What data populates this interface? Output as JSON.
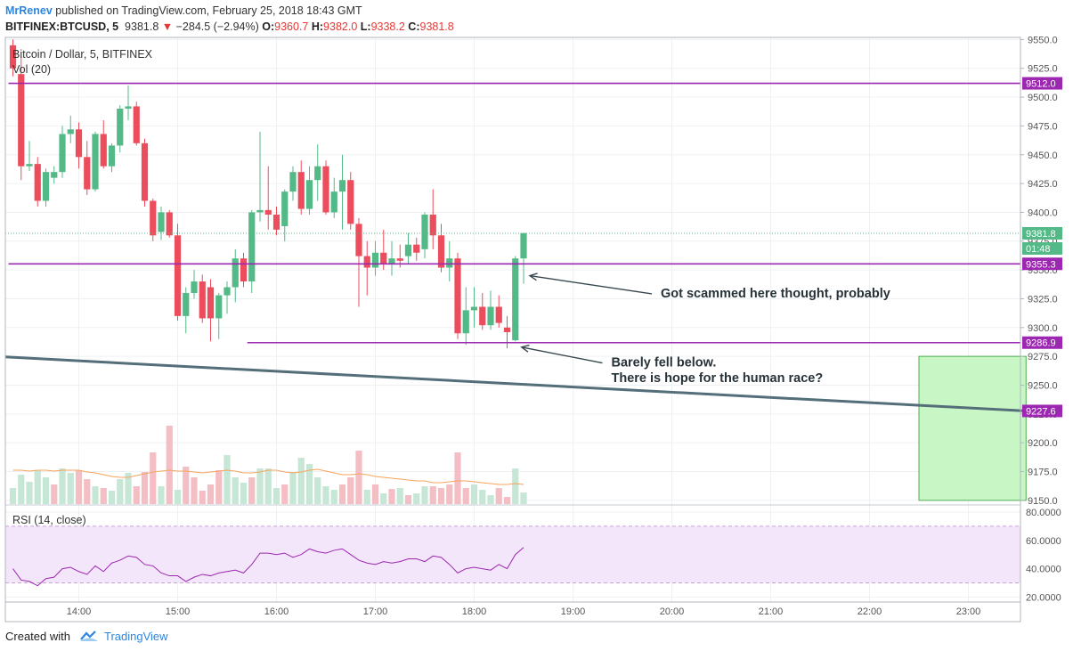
{
  "header": {
    "author": "MrRenev",
    "published_text": "published on TradingView.com, February 25, 2018 18:43 GMT",
    "symbol": "BITFINEX:BTCUSD, 5",
    "last": "9381.8",
    "change_arrow": "▼",
    "change": "−284.5 (−2.94%)",
    "open_label": "O:",
    "open": "9360.7",
    "high_label": "H:",
    "high": "9382.0",
    "low_label": "L:",
    "low": "9338.2",
    "close_label": "C:",
    "close": "9381.8"
  },
  "footer": {
    "created_with": "Created with",
    "brand": "TradingView"
  },
  "chart_data": {
    "type": "candlestick",
    "title": "Bitcoin / Dollar, 5, BITFINEX",
    "volume_label": "Vol (20)",
    "price_axis": {
      "ylim": [
        9147,
        9552
      ],
      "ticks": [
        "9550.0",
        "9525.0",
        "9500.0",
        "9475.0",
        "9450.0",
        "9425.0",
        "9400.0",
        "9375.0",
        "9350.0",
        "9325.0",
        "9300.0",
        "9275.0",
        "9250.0",
        "9225.0",
        "9200.0",
        "9175.0",
        "9150.0"
      ]
    },
    "time_axis": {
      "start_time": "13:20",
      "interval": "5",
      "ticks": [
        "14:00",
        "15:00",
        "16:00",
        "17:00",
        "18:00",
        "19:00",
        "20:00",
        "21:00",
        "22:00",
        "23:00"
      ]
    },
    "candles": [
      [
        9545,
        9550,
        9518,
        9525
      ],
      [
        9520,
        9535,
        9428,
        9440
      ],
      [
        9440,
        9462,
        9436,
        9442
      ],
      [
        9442,
        9448,
        9405,
        9410
      ],
      [
        9410,
        9438,
        9405,
        9435
      ],
      [
        9430,
        9440,
        9425,
        9435
      ],
      [
        9435,
        9475,
        9430,
        9468
      ],
      [
        9468,
        9484,
        9460,
        9472
      ],
      [
        9472,
        9478,
        9438,
        9448
      ],
      [
        9448,
        9462,
        9415,
        9420
      ],
      [
        9420,
        9470,
        9418,
        9468
      ],
      [
        9468,
        9480,
        9438,
        9440
      ],
      [
        9440,
        9460,
        9435,
        9458
      ],
      [
        9458,
        9493,
        9452,
        9490
      ],
      [
        9490,
        9510,
        9480,
        9492
      ],
      [
        9492,
        9496,
        9458,
        9460
      ],
      [
        9460,
        9464,
        9405,
        9410
      ],
      [
        9410,
        9412,
        9375,
        9380
      ],
      [
        9383,
        9405,
        9376,
        9400
      ],
      [
        9400,
        9402,
        9378,
        9380
      ],
      [
        9380,
        9390,
        9306,
        9310
      ],
      [
        9310,
        9335,
        9295,
        9330
      ],
      [
        9330,
        9350,
        9325,
        9340
      ],
      [
        9340,
        9346,
        9304,
        9308
      ],
      [
        9335,
        9342,
        9288,
        9308
      ],
      [
        9308,
        9330,
        9290,
        9328
      ],
      [
        9328,
        9340,
        9312,
        9335
      ],
      [
        9335,
        9368,
        9322,
        9360
      ],
      [
        9360,
        9365,
        9335,
        9340
      ],
      [
        9340,
        9402,
        9330,
        9400
      ],
      [
        9400,
        9470,
        9392,
        9402
      ],
      [
        9402,
        9440,
        9385,
        9398
      ],
      [
        9398,
        9405,
        9380,
        9385
      ],
      [
        9388,
        9420,
        9375,
        9418
      ],
      [
        9418,
        9440,
        9410,
        9435
      ],
      [
        9435,
        9445,
        9398,
        9403
      ],
      [
        9403,
        9440,
        9398,
        9428
      ],
      [
        9428,
        9459,
        9410,
        9440
      ],
      [
        9440,
        9445,
        9398,
        9400
      ],
      [
        9400,
        9430,
        9395,
        9418
      ],
      [
        9418,
        9450,
        9385,
        9428
      ],
      [
        9428,
        9435,
        9385,
        9390
      ],
      [
        9390,
        9395,
        9318,
        9362
      ],
      [
        9362,
        9375,
        9328,
        9352
      ],
      [
        9352,
        9375,
        9345,
        9365
      ],
      [
        9365,
        9385,
        9350,
        9355
      ],
      [
        9355,
        9375,
        9345,
        9360
      ],
      [
        9360,
        9372,
        9352,
        9358
      ],
      [
        9362,
        9382,
        9355,
        9372
      ],
      [
        9372,
        9378,
        9358,
        9365
      ],
      [
        9368,
        9400,
        9360,
        9398
      ],
      [
        9398,
        9420,
        9368,
        9380
      ],
      [
        9380,
        9390,
        9348,
        9352
      ],
      [
        9352,
        9375,
        9340,
        9360
      ],
      [
        9360,
        9365,
        9290,
        9295
      ],
      [
        9295,
        9335,
        9285,
        9315
      ],
      [
        9315,
        9335,
        9300,
        9318
      ],
      [
        9318,
        9330,
        9298,
        9302
      ],
      [
        9302,
        9332,
        9298,
        9318
      ],
      [
        9318,
        9328,
        9300,
        9304
      ],
      [
        9300,
        9310,
        9282,
        9296
      ],
      [
        9289,
        9362,
        9288,
        9360
      ],
      [
        9360,
        9382,
        9338,
        9382
      ]
    ],
    "volumes": [
      [
        18,
        "up"
      ],
      [
        33,
        "up"
      ],
      [
        25,
        "up"
      ],
      [
        38,
        "up"
      ],
      [
        30,
        "up"
      ],
      [
        22,
        "dn"
      ],
      [
        40,
        "up"
      ],
      [
        35,
        "up"
      ],
      [
        38,
        "dn"
      ],
      [
        28,
        "dn"
      ],
      [
        20,
        "up"
      ],
      [
        18,
        "dn"
      ],
      [
        15,
        "up"
      ],
      [
        28,
        "up"
      ],
      [
        35,
        "up"
      ],
      [
        20,
        "dn"
      ],
      [
        36,
        "dn"
      ],
      [
        58,
        "dn"
      ],
      [
        20,
        "up"
      ],
      [
        88,
        "dn"
      ],
      [
        16,
        "up"
      ],
      [
        42,
        "dn"
      ],
      [
        30,
        "dn"
      ],
      [
        15,
        "dn"
      ],
      [
        22,
        "dn"
      ],
      [
        38,
        "dn"
      ],
      [
        55,
        "up"
      ],
      [
        30,
        "up"
      ],
      [
        24,
        "up"
      ],
      [
        30,
        "dn"
      ],
      [
        40,
        "up"
      ],
      [
        40,
        "up"
      ],
      [
        18,
        "up"
      ],
      [
        22,
        "dn"
      ],
      [
        36,
        "up"
      ],
      [
        52,
        "up"
      ],
      [
        45,
        "up"
      ],
      [
        30,
        "up"
      ],
      [
        20,
        "up"
      ],
      [
        16,
        "up"
      ],
      [
        22,
        "dn"
      ],
      [
        30,
        "dn"
      ],
      [
        60,
        "dn"
      ],
      [
        16,
        "up"
      ],
      [
        22,
        "dn"
      ],
      [
        12,
        "up"
      ],
      [
        17,
        "dn"
      ],
      [
        18,
        "up"
      ],
      [
        10,
        "dn"
      ],
      [
        12,
        "up"
      ],
      [
        20,
        "up"
      ],
      [
        20,
        "dn"
      ],
      [
        18,
        "dn"
      ],
      [
        22,
        "dn"
      ],
      [
        58,
        "dn"
      ],
      [
        18,
        "dn"
      ],
      [
        22,
        "up"
      ],
      [
        16,
        "up"
      ],
      [
        10,
        "up"
      ],
      [
        18,
        "dn"
      ],
      [
        8,
        "dn"
      ],
      [
        40,
        "up"
      ],
      [
        13,
        "up"
      ]
    ],
    "volume_ma": [
      38,
      38,
      37,
      38,
      38,
      37,
      38,
      38,
      38,
      36,
      35,
      33,
      31,
      30,
      30,
      32,
      34,
      36,
      37,
      38,
      37,
      37,
      36,
      35,
      36,
      37,
      38,
      37,
      35,
      35,
      36,
      38,
      38,
      36,
      35,
      36,
      38,
      39,
      37,
      35,
      33,
      33,
      34,
      33,
      31,
      30,
      29,
      28,
      27,
      26,
      26,
      24,
      24,
      25,
      26,
      26,
      25,
      24,
      23,
      22,
      22,
      23,
      22
    ],
    "horizontal_lines": [
      {
        "price": 9512.0,
        "label": "9512.0",
        "color": "#9c27b0",
        "start_index": 0
      },
      {
        "price": 9355.3,
        "label": "9355.3",
        "color": "#9c27b0",
        "start_index": 0
      },
      {
        "price": 9286.9,
        "label": "9286.9",
        "color": "#9c27b0",
        "start_index": 29
      }
    ],
    "trend_line": {
      "start_price": 9274.5,
      "end_price": 9227.6,
      "label": "9227.6",
      "color": "#546e7a",
      "start_time": "13:20",
      "end_time": "23:35"
    },
    "target_box": {
      "top_price": 9275.0,
      "bottom_price": 9150.0,
      "start_time": "22:30",
      "end_time": "23:35",
      "color": "#c8f7c5",
      "border": "#4caf50"
    },
    "last_price": {
      "label": "9381.8",
      "countdown": "01:48",
      "color": "#53b987"
    },
    "annotations": [
      {
        "text": "Got scammed here thought, probably",
        "price": 9330.0,
        "time": "19:50",
        "arrow_to_index": 62,
        "arrow_to_price": 9345.0
      },
      {
        "text": "Barely fell below.",
        "price": 9270.0,
        "time": "19:20",
        "arrow_to_index": 61,
        "arrow_to_price": 9283.0
      },
      {
        "text": "There is hope for the human race?",
        "price": 9256.5,
        "time": "19:20"
      }
    ],
    "rsi": {
      "label": "RSI (14, close)",
      "ylim": [
        18,
        82
      ],
      "ticks": [
        "80.0000",
        "60.0000",
        "40.0000",
        "20.0000"
      ],
      "band": [
        30,
        70
      ],
      "values": [
        40,
        32,
        31,
        28,
        33,
        34,
        40,
        41,
        38,
        36,
        42,
        38,
        44,
        46,
        49,
        48,
        43,
        42,
        37,
        35,
        35,
        31,
        34,
        36,
        35,
        37,
        38,
        39,
        37,
        43,
        51,
        51,
        50,
        51,
        48,
        50,
        54,
        52,
        51,
        53,
        54,
        50,
        46,
        44,
        43,
        45,
        44,
        45,
        47,
        47,
        45,
        49,
        48,
        43,
        37,
        40,
        41,
        40,
        39,
        43,
        40,
        50,
        55
      ]
    },
    "colors": {
      "up": "#53b987",
      "down": "#eb4d5c",
      "up_vol": "#c7e7d6",
      "down_vol": "#f4bfc4",
      "ma": "#f7a35c",
      "rsi_line": "#9c27b0",
      "rsi_band": "#f3e6fb"
    }
  }
}
